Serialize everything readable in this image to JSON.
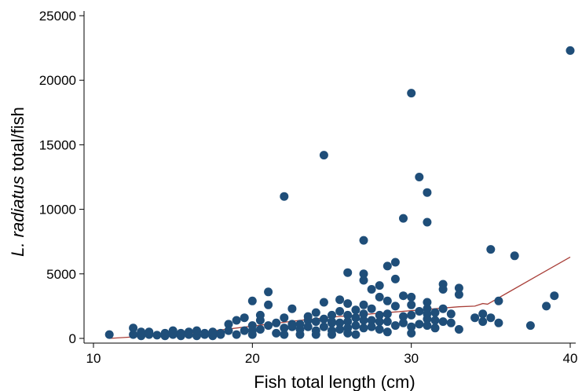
{
  "chart_data": {
    "type": "scatter",
    "title": "",
    "xlabel": "Fish total length (cm)",
    "ylabel_italic": "L. radiatus",
    "ylabel_rest": " total/fish",
    "xlim": [
      10,
      40
    ],
    "ylim": [
      0,
      25000
    ],
    "x_ticks": [
      10,
      20,
      30,
      40
    ],
    "y_ticks": [
      0,
      5000,
      10000,
      15000,
      20000,
      25000
    ],
    "grid": false,
    "colors": {
      "points": "#1f4e79",
      "fit_line": "#a9403a",
      "axis": "#000000"
    },
    "series": [
      {
        "kind": "points",
        "x": [
          11,
          12.5,
          12.5,
          13,
          13,
          13.5,
          13.5,
          14,
          14.5,
          14.5,
          15,
          15,
          15.5,
          15.5,
          16,
          16,
          16.5,
          16.5,
          17,
          17,
          17.5,
          17.5,
          18,
          18,
          18.5,
          18.5,
          19,
          19,
          19.5,
          19.5,
          20,
          20,
          20,
          20,
          20.5,
          20.5,
          20.5,
          21,
          21,
          21,
          21.5,
          21.5,
          22,
          22,
          22,
          22,
          22.5,
          22.5,
          22.5,
          23,
          23,
          23,
          23.5,
          23.5,
          23.5,
          24,
          24,
          24,
          24,
          24.5,
          24.5,
          24.5,
          24.5,
          25,
          25,
          25,
          25,
          25,
          25.5,
          25.5,
          25.5,
          25.5,
          26,
          26,
          26,
          26,
          26,
          26,
          26.5,
          26.5,
          26.5,
          26.5,
          27,
          27,
          27,
          27,
          27,
          27,
          27,
          27.5,
          27.5,
          27.5,
          27.5,
          28,
          28,
          28,
          28,
          28,
          28.5,
          28.5,
          28.5,
          28.5,
          28.5,
          29,
          29,
          29,
          29,
          29.5,
          29.5,
          29.5,
          29.5,
          30,
          30,
          30,
          30,
          30,
          30,
          30.5,
          30.5,
          30.5,
          31,
          31,
          31,
          31,
          31,
          31,
          31,
          31.5,
          31.5,
          31.5,
          32,
          32,
          32,
          32,
          32.5,
          32.5,
          33,
          33,
          33,
          34,
          34.5,
          34.5,
          35,
          35,
          35.5,
          35.5,
          36.5,
          37.5,
          38.5,
          39,
          40
        ],
        "y": [
          300,
          800,
          300,
          200,
          500,
          300,
          500,
          250,
          400,
          200,
          600,
          300,
          200,
          400,
          500,
          300,
          200,
          600,
          300,
          400,
          200,
          500,
          400,
          300,
          1100,
          600,
          300,
          1400,
          1600,
          600,
          2900,
          1000,
          600,
          300,
          1400,
          1800,
          700,
          3600,
          2600,
          1000,
          1200,
          400,
          11000,
          1600,
          800,
          300,
          2300,
          1100,
          900,
          700,
          300,
          1100,
          1400,
          1700,
          900,
          2000,
          1300,
          600,
          300,
          2800,
          14200,
          1500,
          900,
          1800,
          1200,
          600,
          300,
          1300,
          3000,
          2100,
          1200,
          700,
          5100,
          2700,
          1800,
          1300,
          800,
          400,
          1600,
          2200,
          1000,
          300,
          7600,
          5000,
          4500,
          2600,
          1900,
          1400,
          800,
          3800,
          2300,
          1400,
          900,
          4100,
          3200,
          1800,
          1300,
          700,
          5600,
          2900,
          1900,
          1300,
          500,
          5900,
          4600,
          2500,
          1000,
          9300,
          3300,
          1700,
          1200,
          19000,
          3200,
          2600,
          1800,
          900,
          400,
          12500,
          2100,
          1100,
          11300,
          9000,
          2800,
          2300,
          1900,
          1500,
          1000,
          2000,
          1400,
          800,
          4200,
          3800,
          2300,
          1300,
          1900,
          1200,
          3900,
          3400,
          700,
          1600,
          1900,
          1300,
          6900,
          1600,
          2900,
          1200,
          6400,
          1000,
          2500,
          3300,
          22300
        ]
      },
      {
        "kind": "fit_line",
        "x": [
          11,
          13,
          15,
          17,
          19,
          21,
          23,
          25,
          27,
          29,
          31,
          33,
          34,
          34.5,
          34.8,
          36,
          38,
          40
        ],
        "y": [
          0,
          150,
          300,
          500,
          800,
          1100,
          1400,
          1650,
          1850,
          2050,
          2250,
          2450,
          2500,
          2700,
          2650,
          3500,
          4900,
          6300
        ]
      }
    ]
  }
}
